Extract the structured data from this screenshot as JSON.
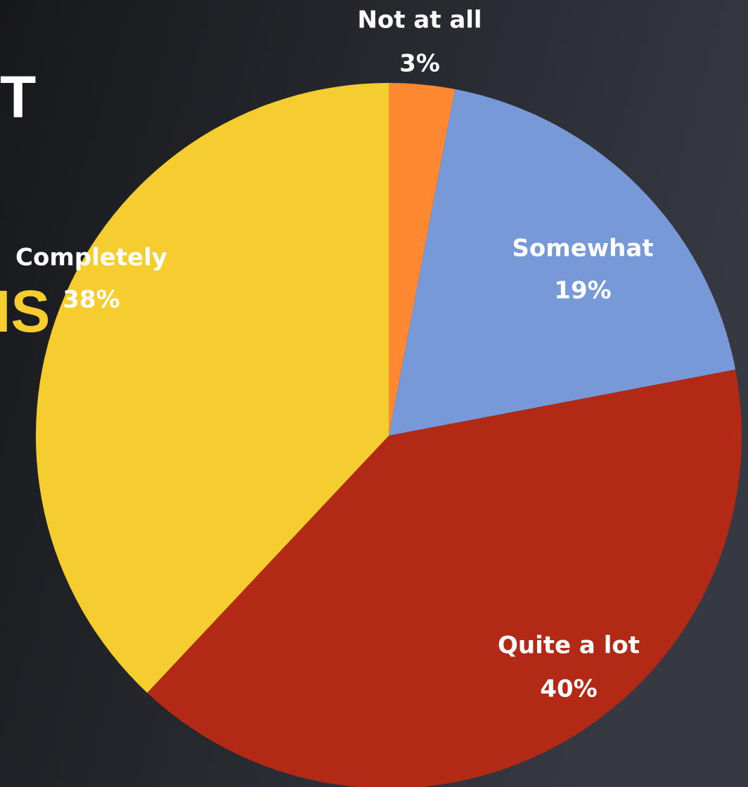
{
  "chart_data": {
    "type": "pie",
    "categories": [
      "Not at all",
      "Somewhat",
      "Quite a lot",
      "Completely"
    ],
    "values": [
      3,
      19,
      40,
      38
    ],
    "value_labels": [
      "3%",
      "19%",
      "40%",
      "38%"
    ],
    "colors": [
      "#FF8833",
      "#7799D8",
      "#B22A16",
      "#F5CD2E"
    ],
    "annotations": [
      {
        "text": "T",
        "color": "#ffffff"
      },
      {
        "text": "IS",
        "color": "#F5CD2E"
      }
    ]
  }
}
